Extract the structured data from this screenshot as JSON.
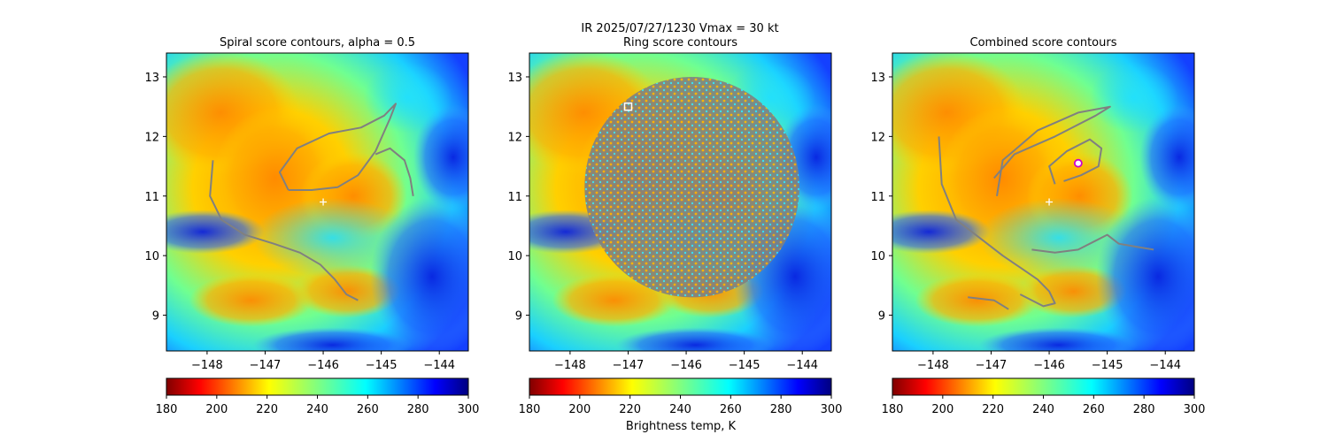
{
  "figure": {
    "suptitle_line": "IR  2025/07/27/1230    Vmax = 30 kt",
    "colorbar_label": "Brightness temp, K"
  },
  "chart_data": [
    {
      "type": "heatmap",
      "title": "Spiral score contours, alpha =  0.5",
      "xlim": [
        -148.7,
        -143.5
      ],
      "ylim": [
        8.4,
        13.4
      ],
      "x_ticks": [
        -148,
        -147,
        -146,
        -145,
        -144
      ],
      "x_tick_labels": [
        "−148",
        "−147",
        "−146",
        "−145",
        "−144"
      ],
      "y_ticks": [
        9,
        10,
        11,
        12,
        13
      ],
      "y_tick_labels": [
        "9",
        "10",
        "11",
        "12",
        "13"
      ],
      "colorbar": {
        "colormap": "jet_r",
        "range": [
          180,
          300
        ],
        "ticks": [
          180,
          200,
          220,
          240,
          260,
          280,
          300
        ]
      },
      "markers": [
        {
          "kind": "plus",
          "color": "#ffffff",
          "x": -146.0,
          "y": 10.9
        }
      ],
      "contours": [
        {
          "color": "#808080",
          "points": [
            [
              -147.9,
              11.6
            ],
            [
              -147.95,
              11.0
            ],
            [
              -147.75,
              10.6
            ],
            [
              -147.35,
              10.35
            ],
            [
              -146.85,
              10.2
            ],
            [
              -146.4,
              10.05
            ],
            [
              -146.05,
              9.85
            ],
            [
              -145.8,
              9.6
            ],
            [
              -145.6,
              9.35
            ],
            [
              -145.4,
              9.25
            ]
          ]
        },
        {
          "color": "#808080",
          "points": [
            [
              -146.6,
              11.1
            ],
            [
              -146.75,
              11.4
            ],
            [
              -146.45,
              11.8
            ],
            [
              -145.9,
              12.05
            ],
            [
              -145.35,
              12.15
            ],
            [
              -144.95,
              12.35
            ],
            [
              -144.75,
              12.55
            ],
            [
              -144.85,
              12.3
            ],
            [
              -145.1,
              11.75
            ],
            [
              -145.4,
              11.35
            ],
            [
              -145.75,
              11.15
            ],
            [
              -146.2,
              11.1
            ],
            [
              -146.6,
              11.1
            ]
          ]
        },
        {
          "color": "#808080",
          "points": [
            [
              -145.1,
              11.7
            ],
            [
              -144.85,
              11.8
            ],
            [
              -144.6,
              11.6
            ],
            [
              -144.5,
              11.3
            ],
            [
              -144.45,
              11.0
            ]
          ]
        }
      ]
    },
    {
      "type": "heatmap",
      "title": "Ring score contours",
      "xlim": [
        -148.7,
        -143.5
      ],
      "ylim": [
        8.4,
        13.4
      ],
      "x_ticks": [
        -148,
        -147,
        -146,
        -145,
        -144
      ],
      "x_tick_labels": [
        "−148",
        "−147",
        "−146",
        "−145",
        "−144"
      ],
      "y_ticks": [
        9,
        10,
        11,
        12,
        13
      ],
      "y_tick_labels": [
        "9",
        "10",
        "11",
        "12",
        "13"
      ],
      "colorbar": {
        "colormap": "jet_r",
        "range": [
          180,
          300
        ],
        "ticks": [
          180,
          200,
          220,
          240,
          260,
          280,
          300
        ]
      },
      "markers": [
        {
          "kind": "square",
          "color": "#ffffff",
          "x": -147.0,
          "y": 12.5
        }
      ],
      "ring_region": {
        "center": [
          -145.9,
          11.15
        ],
        "radius_deg": 1.85,
        "color": "#808080"
      },
      "contours": []
    },
    {
      "type": "heatmap",
      "title": "Combined score contours",
      "xlim": [
        -148.7,
        -143.5
      ],
      "ylim": [
        8.4,
        13.4
      ],
      "x_ticks": [
        -148,
        -147,
        -146,
        -145,
        -144
      ],
      "x_tick_labels": [
        "−148",
        "−147",
        "−146",
        "−145",
        "−144"
      ],
      "y_ticks": [
        9,
        10,
        11,
        12,
        13
      ],
      "y_tick_labels": [
        "9",
        "10",
        "11",
        "12",
        "13"
      ],
      "colorbar": {
        "colormap": "jet_r",
        "range": [
          180,
          300
        ],
        "ticks": [
          180,
          200,
          220,
          240,
          260,
          280,
          300
        ]
      },
      "markers": [
        {
          "kind": "plus",
          "color": "#ffffff",
          "x": -146.0,
          "y": 10.9
        },
        {
          "kind": "circle",
          "color": "#cc00cc",
          "x": -145.5,
          "y": 11.55
        }
      ],
      "contours": [
        {
          "color": "#808080",
          "points": [
            [
              -147.9,
              12.0
            ],
            [
              -147.85,
              11.2
            ],
            [
              -147.6,
              10.6
            ],
            [
              -147.2,
              10.3
            ],
            [
              -146.8,
              10.0
            ],
            [
              -146.5,
              9.8
            ],
            [
              -146.2,
              9.6
            ],
            [
              -146.0,
              9.4
            ],
            [
              -145.9,
              9.2
            ],
            [
              -146.1,
              9.15
            ],
            [
              -146.5,
              9.35
            ]
          ]
        },
        {
          "color": "#808080",
          "points": [
            [
              -147.4,
              9.3
            ],
            [
              -146.95,
              9.25
            ],
            [
              -146.7,
              9.1
            ]
          ]
        },
        {
          "color": "#808080",
          "points": [
            [
              -146.9,
              11.0
            ],
            [
              -146.8,
              11.6
            ],
            [
              -146.2,
              12.1
            ],
            [
              -145.5,
              12.4
            ],
            [
              -144.95,
              12.5
            ],
            [
              -145.2,
              12.35
            ],
            [
              -145.9,
              12.0
            ],
            [
              -146.6,
              11.7
            ],
            [
              -146.95,
              11.3
            ]
          ]
        },
        {
          "color": "#808080",
          "points": [
            [
              -145.9,
              11.2
            ],
            [
              -146.0,
              11.5
            ],
            [
              -145.7,
              11.75
            ],
            [
              -145.3,
              11.95
            ],
            [
              -145.1,
              11.8
            ],
            [
              -145.15,
              11.5
            ],
            [
              -145.45,
              11.35
            ],
            [
              -145.75,
              11.25
            ]
          ]
        },
        {
          "color": "#808080",
          "points": [
            [
              -146.3,
              10.1
            ],
            [
              -145.9,
              10.05
            ],
            [
              -145.5,
              10.1
            ],
            [
              -145.2,
              10.25
            ],
            [
              -145.0,
              10.35
            ],
            [
              -144.8,
              10.2
            ],
            [
              -144.5,
              10.15
            ],
            [
              -144.2,
              10.1
            ]
          ]
        }
      ]
    }
  ]
}
